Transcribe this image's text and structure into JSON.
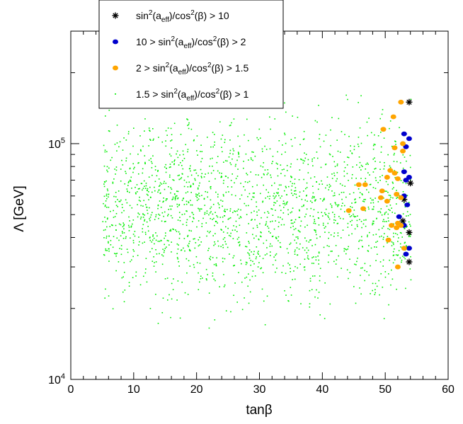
{
  "chart_data": {
    "type": "scatter",
    "title": "",
    "xlabel": "tanβ",
    "ylabel": "Λ [GeV]",
    "xlim": [
      0,
      60
    ],
    "ylim": [
      10000,
      300000
    ],
    "yscale": "log",
    "grid": false,
    "legend_position": "top-left",
    "x_ticks": [
      "0",
      "10",
      "20",
      "30",
      "40",
      "50",
      "60"
    ],
    "y_ticks": [
      {
        "value": 10000,
        "base": "10",
        "exp": "4"
      },
      {
        "value": 100000,
        "base": "10",
        "exp": "5"
      }
    ],
    "legend": [
      {
        "pre": "sin",
        "a": "2",
        "b": "(a",
        "sub": "eff",
        "c": ")/cos",
        "d": "2",
        "e": "(β) > 10"
      },
      {
        "pre": "10 > sin",
        "a": "2",
        "b": "(a",
        "sub": "eff",
        "c": ")/cos",
        "d": "2",
        "e": "(β) > 2"
      },
      {
        "pre": "2 > sin",
        "a": "2",
        "b": "(a",
        "sub": "eff",
        "c": ")/cos",
        "d": "2",
        "e": "(β) > 1.5"
      },
      {
        "pre": "1.5 > sin",
        "a": "2",
        "b": "(a",
        "sub": "eff",
        "c": ")/cos",
        "d": "2",
        "e": "(β) > 1"
      }
    ],
    "series": [
      {
        "marker": "star",
        "color": "#000000",
        "points": [
          [
            53.8,
            150000
          ],
          [
            54,
            68000
          ],
          [
            53,
            58000
          ],
          [
            52.8,
            47000
          ],
          [
            53.8,
            42000
          ],
          [
            53.8,
            31500
          ]
        ]
      },
      {
        "marker": "circle",
        "color": "#0000cc",
        "points": [
          [
            53,
            110000
          ],
          [
            53.8,
            105000
          ],
          [
            53.3,
            97000
          ],
          [
            53,
            76000
          ],
          [
            53.8,
            72000
          ],
          [
            53.3,
            70000
          ],
          [
            53,
            60000
          ],
          [
            53.5,
            55000
          ],
          [
            52.2,
            49000
          ],
          [
            53,
            45000
          ],
          [
            53.8,
            36000
          ],
          [
            53.3,
            34000
          ]
        ]
      },
      {
        "marker": "circle",
        "color": "#ffa500",
        "points": [
          [
            52.5,
            150000
          ],
          [
            51.3,
            130000
          ],
          [
            49.7,
            115000
          ],
          [
            52.8,
            100000
          ],
          [
            51.5,
            96000
          ],
          [
            52.8,
            93000
          ],
          [
            50.8,
            77000
          ],
          [
            51.5,
            75000
          ],
          [
            50.3,
            72000
          ],
          [
            52,
            71000
          ],
          [
            45.8,
            67000
          ],
          [
            46.8,
            67000
          ],
          [
            49.5,
            63000
          ],
          [
            51.8,
            61000
          ],
          [
            49.3,
            59000
          ],
          [
            52.5,
            59000
          ],
          [
            50.3,
            57000
          ],
          [
            44.2,
            52000
          ],
          [
            46.5,
            53000
          ],
          [
            52,
            46000
          ],
          [
            51,
            45000
          ],
          [
            51.8,
            44000
          ],
          [
            52.5,
            45000
          ],
          [
            50.5,
            39000
          ],
          [
            53,
            36000
          ],
          [
            52,
            30000
          ]
        ]
      },
      {
        "marker": "dot",
        "color": "#00ee00",
        "generated": true,
        "count": 1900,
        "x_range": [
          5,
          54
        ],
        "y_range": [
          15000,
          185000
        ],
        "seed": 12345
      }
    ]
  }
}
